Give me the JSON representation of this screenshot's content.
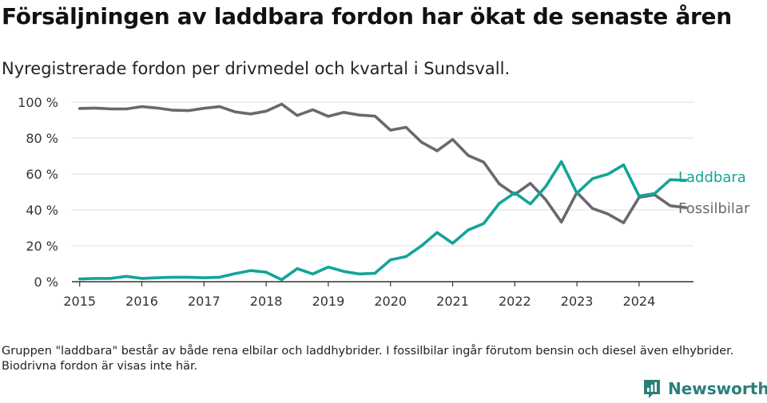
{
  "title": "Försäljningen av laddbara fordon har ökat de senaste åren",
  "subtitle": "Nyregistrerade fordon per drivmedel och kvartal i Sundsvall.",
  "footnote": "Gruppen \"laddbara\" består av både rena elbilar och laddhybrider. I fossilbilar ingår förutom bensin och diesel även elhybrider. Biodrivna fordon är visas inte här.",
  "brand": "Newsworthy",
  "colors": {
    "laddbara": "#12a597",
    "fossil": "#6b6870",
    "grid": "#dddddd",
    "axis": "#333333"
  },
  "chart_data": {
    "type": "line",
    "title": "Försäljningen av laddbara fordon har ökat de senaste åren",
    "ylabel": "",
    "xlabel": "",
    "ylim": [
      0,
      100
    ],
    "yticks": [
      0,
      20,
      40,
      60,
      80,
      100
    ],
    "ytick_labels": [
      "0 %",
      "20 %",
      "40 %",
      "60 %",
      "80 %",
      "100 %"
    ],
    "xlim": [
      2014.875,
      2024.875
    ],
    "xticks": [
      2015,
      2016,
      2017,
      2018,
      2019,
      2020,
      2021,
      2022,
      2023,
      2024
    ],
    "xtick_labels": [
      "2015",
      "2016",
      "2017",
      "2018",
      "2019",
      "2020",
      "2021",
      "2022",
      "2023",
      "2024"
    ],
    "x": [
      2015.0,
      2015.25,
      2015.5,
      2015.75,
      2016.0,
      2016.25,
      2016.5,
      2016.75,
      2017.0,
      2017.25,
      2017.5,
      2017.75,
      2018.0,
      2018.25,
      2018.5,
      2018.75,
      2019.0,
      2019.25,
      2019.5,
      2019.75,
      2020.0,
      2020.25,
      2020.5,
      2020.75,
      2021.0,
      2021.25,
      2021.5,
      2021.75,
      2022.0,
      2022.25,
      2022.5,
      2022.75,
      2023.0,
      2023.25,
      2023.5,
      2023.75,
      2024.0,
      2024.25,
      2024.5,
      2024.75
    ],
    "series": [
      {
        "name": "Fossilbilar",
        "label": "Fossilbilar",
        "values": [
          96.5,
          96.7,
          96.2,
          96.2,
          97.5,
          96.7,
          95.5,
          95.3,
          96.6,
          97.5,
          94.6,
          93.4,
          95.0,
          98.9,
          92.6,
          95.8,
          92.1,
          94.3,
          92.8,
          92.2,
          84.4,
          86.0,
          77.7,
          72.9,
          79.2,
          70.3,
          66.6,
          54.5,
          48.6,
          54.8,
          45.6,
          33.2,
          49.7,
          40.8,
          37.7,
          32.8,
          47.0,
          48.4,
          42.3,
          41.3
        ]
      },
      {
        "name": "Laddbara",
        "label": "Laddbara",
        "values": [
          1.5,
          1.8,
          1.8,
          3.0,
          1.8,
          2.2,
          2.5,
          2.5,
          2.2,
          2.5,
          4.5,
          6.2,
          5.3,
          1.1,
          7.3,
          4.3,
          8.2,
          5.7,
          4.3,
          4.7,
          12.2,
          14.0,
          20.0,
          27.4,
          21.4,
          28.8,
          32.4,
          43.6,
          49.5,
          43.3,
          53.1,
          66.9,
          49.3,
          57.4,
          59.9,
          65.1,
          47.7,
          49.1,
          56.8,
          56.5
        ]
      }
    ],
    "legend": "inline-right"
  }
}
